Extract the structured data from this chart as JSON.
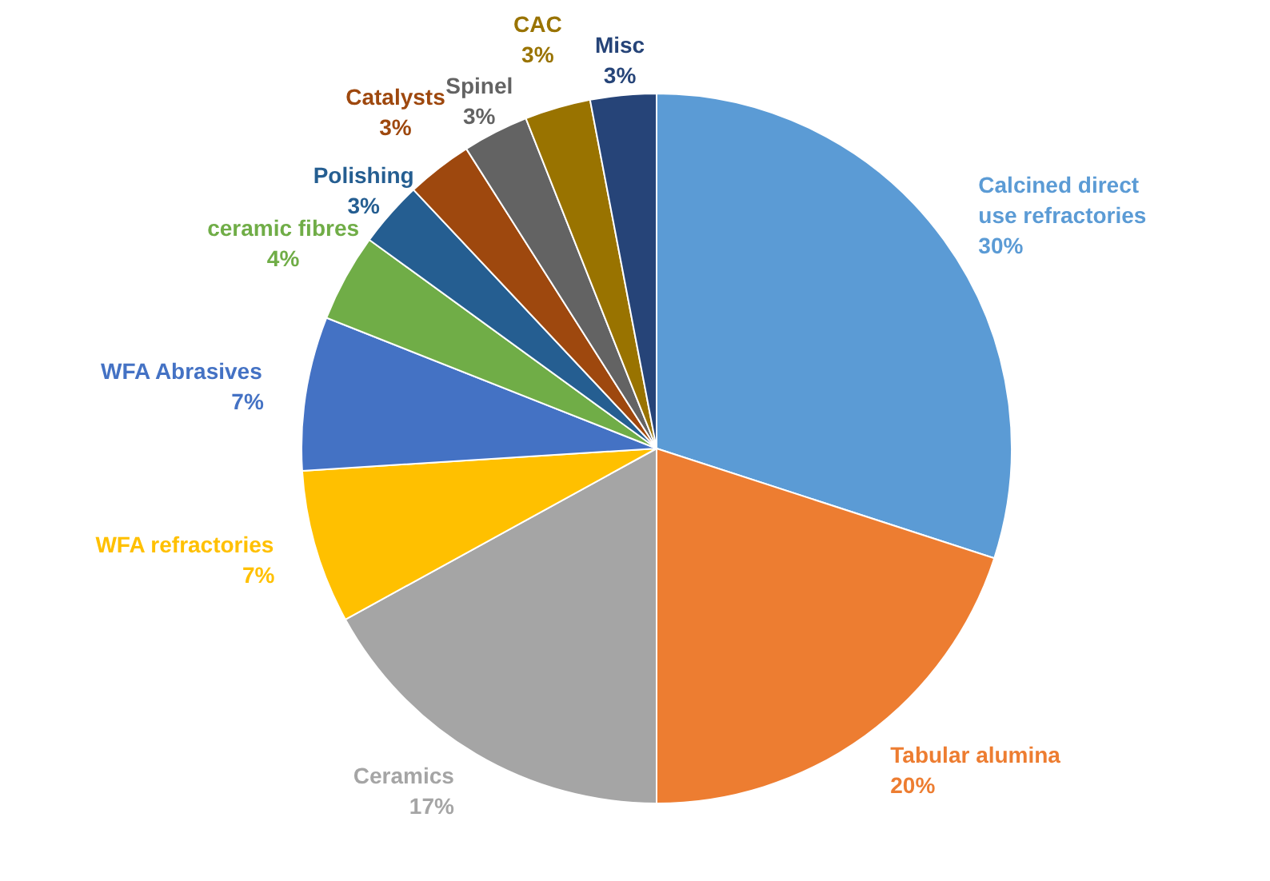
{
  "chart_data": {
    "type": "pie",
    "categories": [
      "Calcined direct use refractories",
      "Tabular alumina",
      "Ceramics",
      "WFA refractories",
      "WFA Abrasives",
      "ceramic fibres",
      "Polishing",
      "Catalysts",
      "Spinel",
      "CAC",
      "Misc"
    ],
    "values": [
      30,
      20,
      17,
      7,
      7,
      4,
      3,
      3,
      3,
      3,
      3
    ],
    "value_labels": [
      "30%",
      "20%",
      "17%",
      "7%",
      "7%",
      "4%",
      "3%",
      "3%",
      "3%",
      "3%",
      "3%"
    ],
    "colors": [
      "#5b9bd5",
      "#ed7d31",
      "#a5a5a5",
      "#ffc000",
      "#4472c4",
      "#70ad47",
      "#255e91",
      "#9e480e",
      "#636363",
      "#997300",
      "#264478"
    ]
  }
}
